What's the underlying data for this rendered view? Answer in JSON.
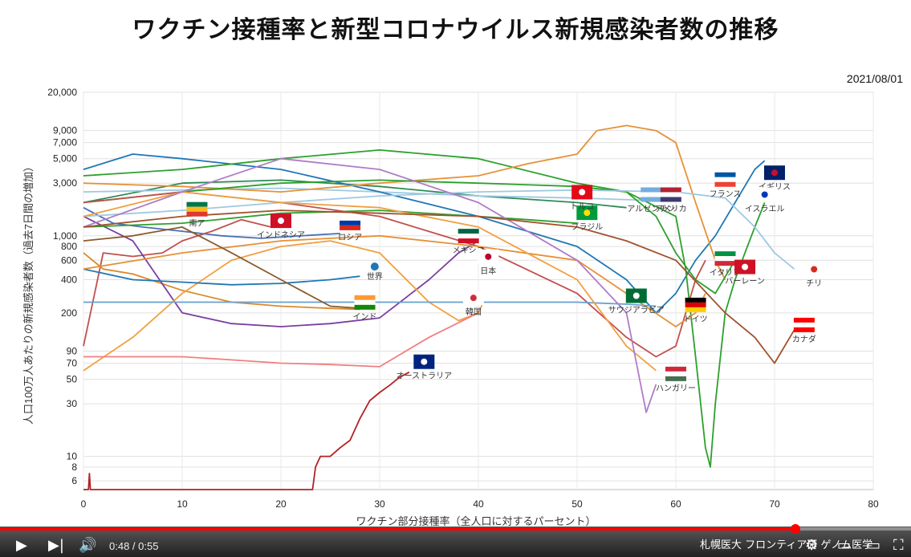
{
  "title": "ワクチン接種率と新型コロナウイルス新規感染者数の推移",
  "date": "2021/08/01",
  "player": {
    "time": "0:48 / 0:55",
    "progress": 0.873,
    "credit": "札幌医大 フロンティア研 ゲノム医学"
  },
  "chart_data": {
    "type": "line",
    "xlabel": "ワクチン部分接種率（全人口に対するパーセント）",
    "ylabel": "人口100万人あたりの新規感染者数（過去7日間の増加）",
    "x_ticks": [
      0,
      10,
      20,
      30,
      40,
      50,
      60,
      70,
      80
    ],
    "xlim": [
      0,
      80
    ],
    "y_scale": "log",
    "y_ticks": [
      "20,000",
      "9,000",
      "7,000",
      "5,000",
      "3,000",
      "1,000",
      "800",
      "600",
      "400",
      "200",
      "90",
      "70",
      "50",
      "30",
      "10",
      "8",
      "6"
    ],
    "ylim": [
      5,
      20000
    ],
    "grid": true,
    "series": [
      {
        "name": "オーストラリア",
        "color": "#b22222",
        "x": [
          0,
          0.5,
          0.6,
          0.7,
          23.2,
          23.5,
          24,
          25,
          26,
          27,
          28,
          29,
          30,
          31,
          32,
          33
        ],
        "y": [
          5,
          5,
          7,
          5,
          5,
          8,
          10,
          10,
          12,
          14,
          22,
          32,
          38,
          44,
          52,
          58
        ]
      },
      {
        "name": "インドネシア",
        "color": "#c0504d",
        "x": [
          0,
          2,
          5,
          8,
          10,
          13,
          16,
          19
        ],
        "y": [
          100,
          700,
          650,
          700,
          900,
          1100,
          1400,
          1200
        ]
      },
      {
        "name": "ロシア",
        "color": "#4a6fb5",
        "x": [
          0,
          3,
          6,
          10,
          14,
          18,
          22,
          26
        ],
        "y": [
          1800,
          1300,
          1200,
          1100,
          1000,
          950,
          1000,
          1050
        ]
      },
      {
        "name": "インド",
        "color": "#d98a2b",
        "x": [
          0,
          2,
          5,
          10,
          15,
          20,
          25,
          28
        ],
        "y": [
          700,
          500,
          450,
          320,
          250,
          230,
          220,
          215
        ]
      },
      {
        "name": "メキシコ",
        "color": "#7b3fa0",
        "x": [
          0,
          5,
          10,
          15,
          20,
          25,
          30,
          35,
          38,
          40
        ],
        "y": [
          1500,
          900,
          200,
          160,
          150,
          160,
          180,
          400,
          700,
          900
        ]
      },
      {
        "name": "日本",
        "color": "#f0a040",
        "x": [
          0,
          5,
          10,
          15,
          20,
          25,
          30,
          35,
          38,
          40,
          40.5
        ],
        "y": [
          60,
          120,
          300,
          600,
          800,
          900,
          700,
          250,
          170,
          200,
          250
        ]
      },
      {
        "name": "韓国",
        "color": "#f08080",
        "x": [
          0,
          5,
          10,
          15,
          20,
          25,
          30,
          35,
          40
        ],
        "y": [
          80,
          80,
          80,
          75,
          70,
          68,
          65,
          120,
          200
        ]
      },
      {
        "name": "世界",
        "color": "#1f77b4",
        "x": [
          0,
          5,
          10,
          15,
          20,
          25,
          28
        ],
        "y": [
          500,
          400,
          380,
          360,
          370,
          400,
          430
        ]
      },
      {
        "name": "ブラジル",
        "color": "#2ca02c",
        "x": [
          0,
          10,
          20,
          30,
          40,
          45,
          50
        ],
        "y": [
          1200,
          1300,
          1600,
          1700,
          1500,
          1400,
          1300
        ]
      },
      {
        "name": "トルコ",
        "color": "#2e8b57",
        "x": [
          0,
          10,
          20,
          30,
          40,
          50,
          55
        ],
        "y": [
          2000,
          3000,
          3200,
          2800,
          2300,
          2000,
          1800
        ]
      },
      {
        "name": "アルゼンチン",
        "color": "#9ec9e2",
        "x": [
          0,
          10,
          20,
          30,
          40,
          50,
          57
        ],
        "y": [
          2500,
          2600,
          2700,
          2500,
          2300,
          2200,
          2100
        ]
      },
      {
        "name": "アメリカ",
        "color": "#1f77b4",
        "x": [
          0,
          5,
          10,
          20,
          30,
          40,
          50,
          55,
          58,
          60,
          62,
          64,
          66,
          68,
          69
        ],
        "y": [
          4000,
          5500,
          5000,
          4000,
          2500,
          1500,
          800,
          400,
          200,
          300,
          600,
          1000,
          2000,
          4000,
          4800
        ]
      },
      {
        "name": "イギリス",
        "color": "#2ca02c",
        "x": [
          0,
          10,
          20,
          30,
          40,
          50,
          55,
          60,
          61,
          62,
          63,
          63.5,
          64,
          65,
          66,
          67,
          68,
          69
        ],
        "y": [
          3500,
          4000,
          5000,
          6000,
          5000,
          3000,
          2500,
          1500,
          500,
          80,
          12,
          8,
          30,
          200,
          400,
          700,
          1200,
          2000
        ]
      },
      {
        "name": "フランス",
        "color": "#e69138",
        "x": [
          0,
          10,
          20,
          30,
          40,
          45,
          50,
          52,
          55,
          58,
          60,
          62,
          64,
          65
        ],
        "y": [
          3000,
          2800,
          2500,
          3000,
          3500,
          4500,
          5500,
          9000,
          10000,
          9000,
          7000,
          2000,
          600,
          400
        ]
      },
      {
        "name": "イスラエル",
        "color": "#2ca02c",
        "x": [
          0,
          10,
          20,
          30,
          40,
          50,
          55,
          58,
          60,
          62,
          64,
          66
        ],
        "y": [
          2000,
          2500,
          3000,
          3200,
          3000,
          2800,
          2500,
          1500,
          700,
          400,
          300,
          600
        ]
      },
      {
        "name": "チリ",
        "color": "#9ec9e2",
        "x": [
          0,
          10,
          20,
          30,
          40,
          50,
          60,
          65,
          68,
          70,
          72
        ],
        "y": [
          1500,
          1700,
          2000,
          2300,
          2500,
          2600,
          2500,
          2200,
          1200,
          700,
          500
        ]
      },
      {
        "name": "イタリア",
        "color": "#c0504d",
        "x": [
          0,
          10,
          20,
          30,
          40,
          50,
          55,
          58,
          60,
          62,
          63
        ],
        "y": [
          2000,
          2500,
          2000,
          1500,
          800,
          300,
          120,
          80,
          100,
          400,
          600
        ]
      },
      {
        "name": "バーレーン",
        "color": "#e69138",
        "x": [
          0,
          10,
          20,
          30,
          40,
          50,
          55,
          60,
          62,
          63
        ],
        "y": [
          500,
          700,
          900,
          1000,
          800,
          600,
          300,
          150,
          200,
          300
        ]
      },
      {
        "name": "サウジアラビア",
        "color": "#6aa0d0",
        "x": [
          0,
          10,
          20,
          30,
          40,
          50,
          55,
          58
        ],
        "y": [
          250,
          250,
          250,
          250,
          250,
          250,
          240,
          230
        ]
      },
      {
        "name": "ドイツ",
        "color": "#f0a040",
        "x": [
          0,
          10,
          20,
          30,
          40,
          50,
          55,
          58
        ],
        "y": [
          1500,
          2500,
          2000,
          1800,
          1200,
          400,
          100,
          60
        ]
      },
      {
        "name": "ハンガリー",
        "color": "#b07cc6",
        "x": [
          0,
          10,
          20,
          30,
          40,
          50,
          55,
          57,
          58
        ],
        "y": [
          1200,
          2500,
          5000,
          4000,
          2000,
          600,
          200,
          25,
          45
        ]
      },
      {
        "name": "カナダ",
        "color": "#a0522d",
        "x": [
          0,
          10,
          20,
          30,
          40,
          50,
          55,
          60,
          65,
          68,
          70,
          72
        ],
        "y": [
          1200,
          1500,
          1700,
          1600,
          1500,
          1200,
          900,
          600,
          200,
          120,
          70,
          140
        ]
      },
      {
        "name": "南アフリカ",
        "color": "#8b5a2b",
        "x": [
          0,
          5,
          10,
          15,
          20,
          25,
          28
        ],
        "y": [
          900,
          1000,
          1200,
          700,
          400,
          230,
          220
        ]
      }
    ],
    "labels": [
      {
        "text": "南ア",
        "x": 11.5,
        "y": 1400,
        "flag": "za"
      },
      {
        "text": "インドネシア",
        "x": 20,
        "y": 1100,
        "flag": "id"
      },
      {
        "text": "ロシア",
        "x": 27,
        "y": 1050,
        "flag": "ru"
      },
      {
        "text": "インド",
        "x": 28.5,
        "y": 200,
        "flag": "in"
      },
      {
        "text": "メキシコ",
        "x": 39,
        "y": 800,
        "flag": "mx"
      },
      {
        "text": "日本",
        "x": 41,
        "y": 520,
        "flag": "jp"
      },
      {
        "text": "世界",
        "x": 29.5,
        "y": 460,
        "flag": ""
      },
      {
        "text": "韓国",
        "x": 39.5,
        "y": 220,
        "flag": "kr"
      },
      {
        "text": "オーストラリア",
        "x": 34.5,
        "y": 58,
        "flag": "au"
      },
      {
        "text": "ブラジル",
        "x": 51,
        "y": 1300,
        "flag": "br"
      },
      {
        "text": "トルコ",
        "x": 50.5,
        "y": 2000,
        "flag": "tr"
      },
      {
        "text": "アルゼンチン",
        "x": 57.5,
        "y": 1900,
        "flag": "ar"
      },
      {
        "text": "アメリカ",
        "x": 59.5,
        "y": 1900,
        "flag": "us"
      },
      {
        "text": "フランス",
        "x": 65,
        "y": 2600,
        "flag": "fr"
      },
      {
        "text": "イギリス",
        "x": 70,
        "y": 3000,
        "flag": "gb"
      },
      {
        "text": "イスラエル",
        "x": 69,
        "y": 1900,
        "flag": "il"
      },
      {
        "text": "イタリア",
        "x": 65,
        "y": 500,
        "flag": "it"
      },
      {
        "text": "バーレーン",
        "x": 67,
        "y": 420,
        "flag": "bh"
      },
      {
        "text": "チリ",
        "x": 74,
        "y": 400,
        "flag": "cl"
      },
      {
        "text": "サウジアラビア",
        "x": 56,
        "y": 230,
        "flag": "sa"
      },
      {
        "text": "ドイツ",
        "x": 62,
        "y": 190,
        "flag": "de"
      },
      {
        "text": "ハンガリー",
        "x": 60,
        "y": 45,
        "flag": "hu"
      },
      {
        "text": "カナダ",
        "x": 73,
        "y": 125,
        "flag": "ca"
      }
    ]
  }
}
